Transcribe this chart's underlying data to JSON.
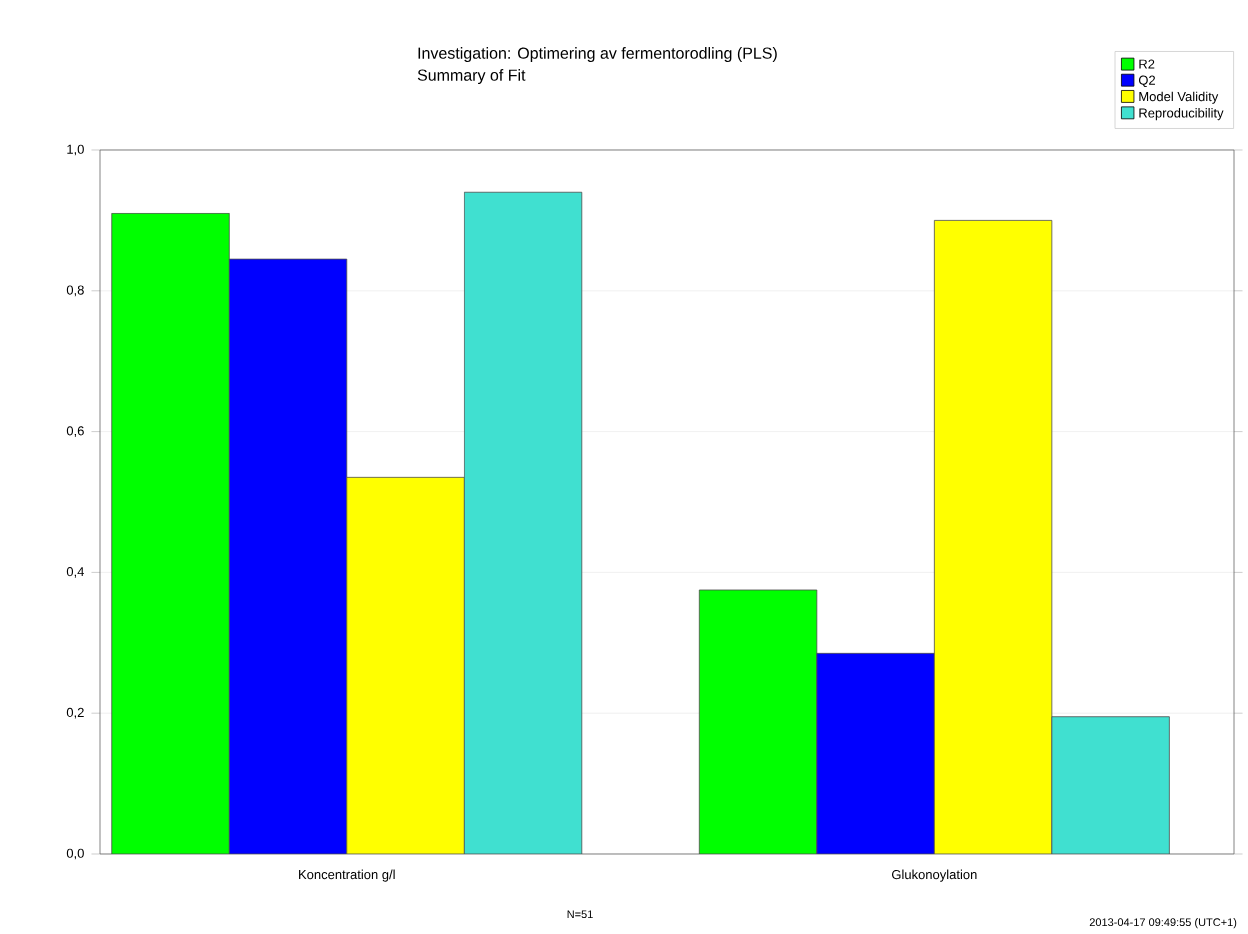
{
  "chart_data": {
    "type": "bar",
    "title": "Investigation: Optimering av fermentorodling (PLS)",
    "subtitle": "Summary of Fit",
    "categories": [
      "Koncentration g/l",
      "Glukonoylation"
    ],
    "series": [
      {
        "name": "R2",
        "color": "#00ff00",
        "values": [
          0.91,
          0.375
        ]
      },
      {
        "name": "Q2",
        "color": "#0000ff",
        "values": [
          0.845,
          0.285
        ]
      },
      {
        "name": "Model Validity",
        "color": "#ffff00",
        "values": [
          0.535,
          0.9
        ]
      },
      {
        "name": "Reproducibility",
        "color": "#40e0d0",
        "values": [
          0.94,
          0.195
        ]
      }
    ],
    "ylim": [
      0,
      1
    ],
    "yticks": [
      {
        "value": 0,
        "label": "0,0"
      },
      {
        "value": 0.2,
        "label": "0,2"
      },
      {
        "value": 0.4,
        "label": "0,4"
      },
      {
        "value": 0.6,
        "label": "0,6"
      },
      {
        "value": 0.8,
        "label": "0,8"
      },
      {
        "value": 1,
        "label": "1,0"
      }
    ],
    "grid": "y",
    "legend": "top right",
    "annotations": [
      "N=51",
      "2013-04-17 09:49:55 (UTC+1)"
    ]
  }
}
